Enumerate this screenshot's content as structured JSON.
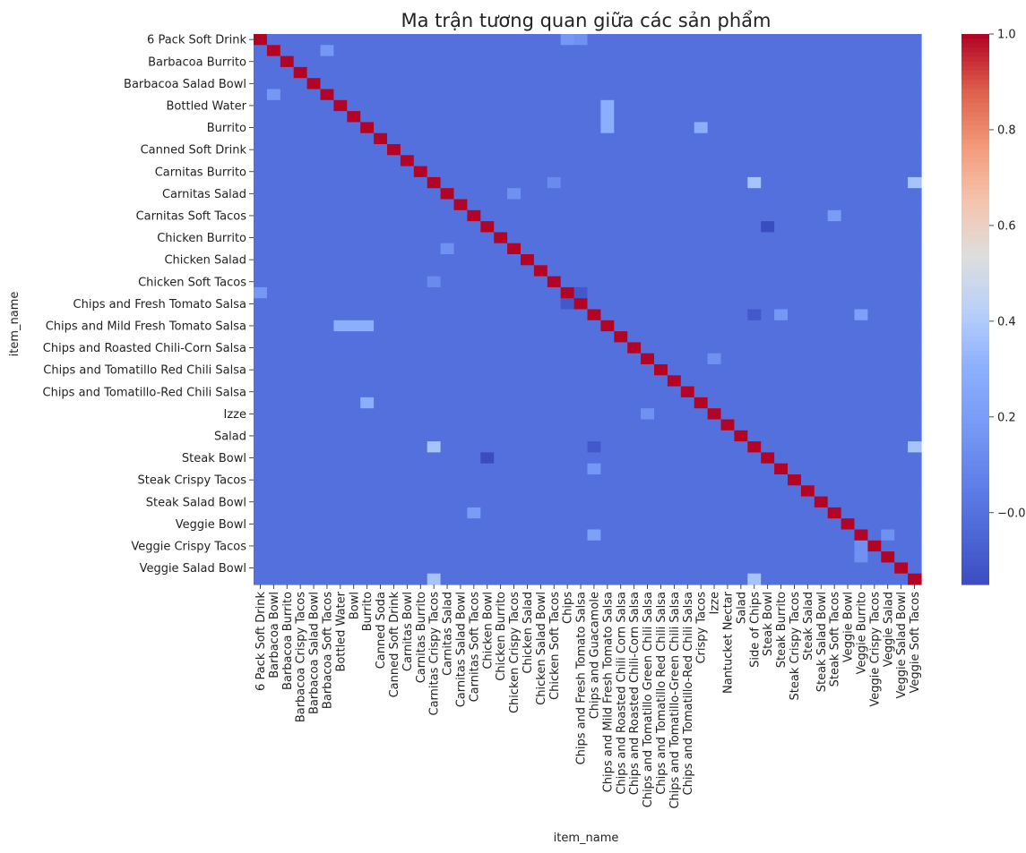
{
  "chart_data": {
    "type": "heatmap",
    "title": "Ma trận tương quan giữa các sản phẩm",
    "xlabel": "item_name",
    "ylabel": "item_name",
    "colormap": "coolwarm",
    "colors": {
      "low": "#3b4cc0",
      "mid": "#dddddd",
      "high": "#b40426",
      "background": "#ffffff"
    },
    "value_range": [
      -0.15,
      1.0
    ],
    "colorbar_ticks": [
      -0.0,
      0.2,
      0.4,
      0.6,
      0.8,
      1.0
    ],
    "colorbar_tick_labels": [
      "−0.0",
      "0.2",
      "0.4",
      "0.6",
      "0.8",
      "1.0"
    ],
    "items": [
      "6 Pack Soft Drink",
      "Barbacoa Bowl",
      "Barbacoa Burrito",
      "Barbacoa Crispy Tacos",
      "Barbacoa Salad Bowl",
      "Barbacoa Soft Tacos",
      "Bottled Water",
      "Bowl",
      "Burrito",
      "Canned Soda",
      "Canned Soft Drink",
      "Carnitas Bowl",
      "Carnitas Burrito",
      "Carnitas Crispy Tacos",
      "Carnitas Salad",
      "Carnitas Salad Bowl",
      "Carnitas Soft Tacos",
      "Chicken Bowl",
      "Chicken Burrito",
      "Chicken Crispy Tacos",
      "Chicken Salad",
      "Chicken Salad Bowl",
      "Chicken Soft Tacos",
      "Chips",
      "Chips and Fresh Tomato Salsa",
      "Chips and Guacamole",
      "Chips and Mild Fresh Tomato Salsa",
      "Chips and Roasted Chili Corn Salsa",
      "Chips and Roasted Chili-Corn Salsa",
      "Chips and Tomatillo Green Chili Salsa",
      "Chips and Tomatillo Red Chili Salsa",
      "Chips and Tomatillo-Green Chili Salsa",
      "Chips and Tomatillo-Red Chili Salsa",
      "Crispy Tacos",
      "Izze",
      "Nantucket Nectar",
      "Salad",
      "Side of Chips",
      "Steak Bowl",
      "Steak Burrito",
      "Steak Crispy Tacos",
      "Steak Salad",
      "Steak Salad Bowl",
      "Steak Soft Tacos",
      "Veggie Bowl",
      "Veggie Burrito",
      "Veggie Crispy Tacos",
      "Veggie Salad",
      "Veggie Salad Bowl",
      "Veggie Soft Tacos"
    ],
    "y_tick_labels": [
      "6 Pack Soft Drink",
      "Barbacoa Burrito",
      "Barbacoa Salad Bowl",
      "Bottled Water",
      "Burrito",
      "Canned Soft Drink",
      "Carnitas Burrito",
      "Carnitas Salad",
      "Carnitas Soft Tacos",
      "Chicken Burrito",
      "Chicken Salad",
      "Chicken Soft Tacos",
      "Chips and Fresh Tomato Salsa",
      "Chips and Mild Fresh Tomato Salsa",
      "Chips and Roasted Chili-Corn Salsa",
      "Chips and Tomatillo Red Chili Salsa",
      "Chips and Tomatillo-Red Chili Salsa",
      "Izze",
      "Salad",
      "Steak Bowl",
      "Steak Crispy Tacos",
      "Steak Salad Bowl",
      "Veggie Bowl",
      "Veggie Crispy Tacos",
      "Veggie Salad Bowl"
    ],
    "diagonal_value": 1.0,
    "background_value": 0.0,
    "notable_cells": [
      {
        "row": "Barbacoa Bowl",
        "col": "Barbacoa Soft Tacos",
        "value": 0.18
      },
      {
        "row": "Barbacoa Soft Tacos",
        "col": "Barbacoa Bowl",
        "value": 0.18
      },
      {
        "row": "Bottled Water",
        "col": "Chips and Mild Fresh Tomato Salsa",
        "value": 0.3
      },
      {
        "row": "Chips and Mild Fresh Tomato Salsa",
        "col": "Bottled Water",
        "value": 0.3
      },
      {
        "row": "Bowl",
        "col": "Chips and Mild Fresh Tomato Salsa",
        "value": 0.3
      },
      {
        "row": "Chips and Mild Fresh Tomato Salsa",
        "col": "Bowl",
        "value": 0.3
      },
      {
        "row": "Burrito",
        "col": "Chips and Mild Fresh Tomato Salsa",
        "value": 0.3
      },
      {
        "row": "Chips and Mild Fresh Tomato Salsa",
        "col": "Burrito",
        "value": 0.3
      },
      {
        "row": "Burrito",
        "col": "Crispy Tacos",
        "value": 0.3
      },
      {
        "row": "Crispy Tacos",
        "col": "Burrito",
        "value": 0.3
      },
      {
        "row": "Carnitas Crispy Tacos",
        "col": "Side of Chips",
        "value": 0.38
      },
      {
        "row": "Side of Chips",
        "col": "Carnitas Crispy Tacos",
        "value": 0.38
      },
      {
        "row": "Carnitas Crispy Tacos",
        "col": "Veggie Soft Tacos",
        "value": 0.38
      },
      {
        "row": "Veggie Soft Tacos",
        "col": "Carnitas Crispy Tacos",
        "value": 0.38
      },
      {
        "row": "Side of Chips",
        "col": "Veggie Soft Tacos",
        "value": 0.38
      },
      {
        "row": "Veggie Soft Tacos",
        "col": "Side of Chips",
        "value": 0.38
      },
      {
        "row": "Chips and Guacamole",
        "col": "Steak Burrito",
        "value": 0.18
      },
      {
        "row": "Steak Burrito",
        "col": "Chips and Guacamole",
        "value": 0.18
      },
      {
        "row": "Chips and Guacamole",
        "col": "Veggie Burrito",
        "value": 0.22
      },
      {
        "row": "Veggie Burrito",
        "col": "Chips and Guacamole",
        "value": 0.22
      },
      {
        "row": "Chicken Bowl",
        "col": "Steak Bowl",
        "value": -0.15
      },
      {
        "row": "Steak Bowl",
        "col": "Chicken Bowl",
        "value": -0.15
      },
      {
        "row": "Chips and Fresh Tomato Salsa",
        "col": "Chips",
        "value": -0.1
      },
      {
        "row": "Chips",
        "col": "Chips and Fresh Tomato Salsa",
        "value": -0.1
      },
      {
        "row": "Chips and Guacamole",
        "col": "Side of Chips",
        "value": -0.1
      },
      {
        "row": "Side of Chips",
        "col": "Chips and Guacamole",
        "value": -0.1
      },
      {
        "row": "Carnitas Soft Tacos",
        "col": "Steak Soft Tacos",
        "value": 0.2
      },
      {
        "row": "Steak Soft Tacos",
        "col": "Carnitas Soft Tacos",
        "value": 0.2
      },
      {
        "row": "Veggie Crispy Tacos",
        "col": "Veggie Burrito",
        "value": 0.15
      },
      {
        "row": "Veggie Burrito",
        "col": "Veggie Salad",
        "value": 0.15
      },
      {
        "row": "Veggie Salad",
        "col": "Veggie Burrito",
        "value": 0.15
      },
      {
        "row": "6 Pack Soft Drink",
        "col": "Chips",
        "value": 0.18
      },
      {
        "row": "Chips",
        "col": "6 Pack Soft Drink",
        "value": 0.18
      },
      {
        "row": "6 Pack Soft Drink",
        "col": "Chips and Fresh Tomato Salsa",
        "value": 0.15
      },
      {
        "row": "Izze",
        "col": "Chips and Tomatillo Green Chili Salsa",
        "value": 0.15
      },
      {
        "row": "Chips and Tomatillo Green Chili Salsa",
        "col": "Izze",
        "value": 0.15
      },
      {
        "row": "Chicken Crispy Tacos",
        "col": "Carnitas Salad",
        "value": 0.15
      },
      {
        "row": "Carnitas Salad",
        "col": "Chicken Crispy Tacos",
        "value": 0.15
      },
      {
        "row": "Chicken Soft Tacos",
        "col": "Carnitas Crispy Tacos",
        "value": 0.12
      },
      {
        "row": "Carnitas Crispy Tacos",
        "col": "Chicken Soft Tacos",
        "value": 0.12
      }
    ]
  }
}
